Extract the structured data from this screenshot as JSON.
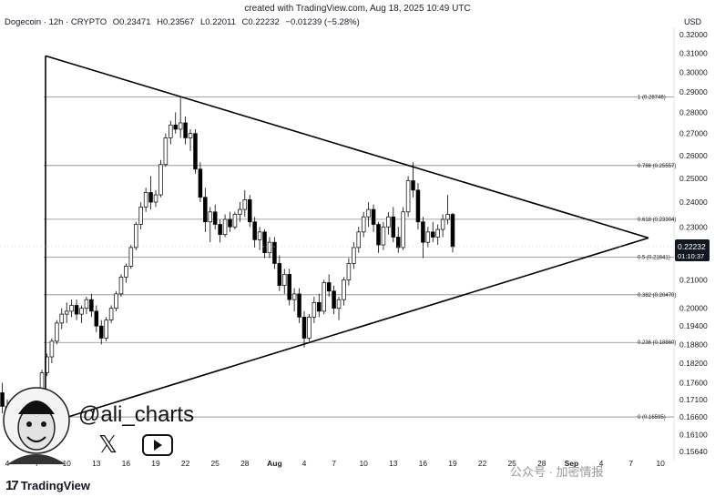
{
  "header": {
    "created_with": "created with TradingView.com, Aug 18, 2025 10:49 UTC",
    "symbol": "Dogecoin · 12h · CRYPTO",
    "open": "O0.23471",
    "high": "H0.23567",
    "low": "L0.22011",
    "close": "C0.22232",
    "change": "−0.01239 (−5.28%)"
  },
  "currency_label": "USD",
  "price_tag": {
    "value": "0.22232",
    "countdown": "01:10:37"
  },
  "branding": {
    "logo_text": "TradingView",
    "handle": "@ali_charts",
    "x_icon": "x-icon",
    "youtube_icon": "youtube-icon"
  },
  "watermark": "公众号 · 加密情报",
  "colors": {
    "up": "#ffffff",
    "down": "#000000",
    "wick": "#000000",
    "fib": "#888888",
    "triangle": "#000000",
    "tag_bg": "#131722"
  },
  "chart_data": {
    "type": "candlestick",
    "scale": "log",
    "y_ticks": [
      "0.32000",
      "0.31000",
      "0.30000",
      "0.29000",
      "0.28000",
      "0.27000",
      "0.26000",
      "0.25000",
      "0.24000",
      "0.23000",
      "0.22000",
      "0.21000",
      "0.20000",
      "0.19400",
      "0.18800",
      "0.18200",
      "0.17600",
      "0.17100",
      "0.16600",
      "0.16100",
      "0.15640"
    ],
    "x_ticks": [
      "4",
      "7",
      "10",
      "13",
      "16",
      "19",
      "22",
      "25",
      "28",
      "Aug",
      "4",
      "7",
      "10",
      "13",
      "16",
      "19",
      "22",
      "25",
      "28",
      "Sep",
      "4",
      "7",
      "10"
    ],
    "fib_levels": [
      {
        "label": "1 (0.28746)",
        "price": 0.28746
      },
      {
        "label": "0.786 (0.25557)",
        "price": 0.25557
      },
      {
        "label": "0.618 (0.23304)",
        "price": 0.23304
      },
      {
        "label": "0.5 (0.21841)",
        "price": 0.21841
      },
      {
        "label": "0.382 (0.20470)",
        "price": 0.2047
      },
      {
        "label": "0.236 (0.18860)",
        "price": 0.1886
      },
      {
        "label": "0 (0.16595)",
        "price": 0.16595
      }
    ],
    "triangle": {
      "upper": [
        {
          "date": "Jul 4",
          "price": 0.3085
        },
        {
          "date": "Sep 2",
          "price": 0.2257
        }
      ],
      "lower": [
        {
          "date": "Jul 4",
          "price": 0.164
        },
        {
          "date": "Sep 2",
          "price": 0.2257
        }
      ]
    },
    "series": [
      {
        "values": [
          [
            0.168,
            0.172,
            0.166,
            0.171
          ],
          [
            0.171,
            0.175,
            0.169,
            0.173
          ],
          [
            0.173,
            0.176,
            0.167,
            0.169
          ],
          [
            0.169,
            0.171,
            0.164,
            0.166
          ],
          [
            0.166,
            0.169,
            0.162,
            0.165
          ],
          [
            0.165,
            0.168,
            0.161,
            0.163
          ],
          [
            0.163,
            0.167,
            0.16,
            0.165
          ],
          [
            0.165,
            0.17,
            0.163,
            0.169
          ],
          [
            0.169,
            0.172,
            0.166,
            0.168
          ],
          [
            0.168,
            0.174,
            0.167,
            0.173
          ],
          [
            0.173,
            0.18,
            0.172,
            0.179
          ],
          [
            0.179,
            0.185,
            0.178,
            0.184
          ],
          [
            0.184,
            0.19,
            0.182,
            0.189
          ],
          [
            0.189,
            0.196,
            0.188,
            0.195
          ],
          [
            0.195,
            0.2,
            0.193,
            0.198
          ],
          [
            0.198,
            0.202,
            0.195,
            0.199
          ],
          [
            0.199,
            0.203,
            0.197,
            0.201
          ],
          [
            0.201,
            0.203,
            0.196,
            0.198
          ],
          [
            0.198,
            0.201,
            0.195,
            0.2
          ],
          [
            0.2,
            0.204,
            0.198,
            0.203
          ],
          [
            0.203,
            0.205,
            0.197,
            0.199
          ],
          [
            0.199,
            0.201,
            0.192,
            0.194
          ],
          [
            0.194,
            0.196,
            0.188,
            0.19
          ],
          [
            0.19,
            0.197,
            0.189,
            0.196
          ],
          [
            0.196,
            0.201,
            0.195,
            0.2
          ],
          [
            0.2,
            0.206,
            0.199,
            0.205
          ],
          [
            0.205,
            0.212,
            0.204,
            0.211
          ],
          [
            0.211,
            0.216,
            0.209,
            0.215
          ],
          [
            0.215,
            0.223,
            0.214,
            0.222
          ],
          [
            0.222,
            0.232,
            0.221,
            0.231
          ],
          [
            0.231,
            0.24,
            0.229,
            0.238
          ],
          [
            0.238,
            0.246,
            0.236,
            0.244
          ],
          [
            0.244,
            0.251,
            0.237,
            0.24
          ],
          [
            0.24,
            0.245,
            0.238,
            0.243
          ],
          [
            0.243,
            0.258,
            0.242,
            0.256
          ],
          [
            0.256,
            0.27,
            0.255,
            0.268
          ],
          [
            0.268,
            0.276,
            0.265,
            0.274
          ],
          [
            0.274,
            0.28,
            0.27,
            0.272
          ],
          [
            0.272,
            0.288,
            0.268,
            0.275
          ],
          [
            0.275,
            0.278,
            0.265,
            0.268
          ],
          [
            0.268,
            0.272,
            0.262,
            0.27
          ],
          [
            0.27,
            0.272,
            0.252,
            0.254
          ],
          [
            0.254,
            0.257,
            0.24,
            0.242
          ],
          [
            0.242,
            0.246,
            0.228,
            0.232
          ],
          [
            0.232,
            0.238,
            0.224,
            0.236
          ],
          [
            0.236,
            0.239,
            0.229,
            0.231
          ],
          [
            0.231,
            0.233,
            0.224,
            0.227
          ],
          [
            0.227,
            0.235,
            0.226,
            0.233
          ],
          [
            0.233,
            0.236,
            0.228,
            0.23
          ],
          [
            0.23,
            0.236,
            0.229,
            0.235
          ],
          [
            0.235,
            0.24,
            0.232,
            0.237
          ],
          [
            0.237,
            0.245,
            0.234,
            0.241
          ],
          [
            0.241,
            0.243,
            0.23,
            0.232
          ],
          [
            0.232,
            0.234,
            0.222,
            0.225
          ],
          [
            0.225,
            0.23,
            0.221,
            0.228
          ],
          [
            0.228,
            0.229,
            0.218,
            0.22
          ],
          [
            0.22,
            0.226,
            0.218,
            0.224
          ],
          [
            0.224,
            0.226,
            0.214,
            0.216
          ],
          [
            0.216,
            0.219,
            0.206,
            0.208
          ],
          [
            0.208,
            0.214,
            0.205,
            0.212
          ],
          [
            0.212,
            0.214,
            0.201,
            0.203
          ],
          [
            0.203,
            0.207,
            0.199,
            0.205
          ],
          [
            0.205,
            0.207,
            0.195,
            0.197
          ],
          [
            0.197,
            0.199,
            0.187,
            0.19
          ],
          [
            0.19,
            0.198,
            0.189,
            0.197
          ],
          [
            0.197,
            0.204,
            0.195,
            0.202
          ],
          [
            0.202,
            0.205,
            0.197,
            0.199
          ],
          [
            0.199,
            0.21,
            0.198,
            0.209
          ],
          [
            0.209,
            0.212,
            0.204,
            0.206
          ],
          [
            0.206,
            0.208,
            0.198,
            0.2
          ],
          [
            0.2,
            0.204,
            0.196,
            0.203
          ],
          [
            0.203,
            0.211,
            0.201,
            0.21
          ],
          [
            0.21,
            0.218,
            0.208,
            0.216
          ],
          [
            0.216,
            0.224,
            0.214,
            0.222
          ],
          [
            0.222,
            0.23,
            0.22,
            0.228
          ],
          [
            0.228,
            0.236,
            0.226,
            0.234
          ],
          [
            0.234,
            0.24,
            0.23,
            0.237
          ],
          [
            0.237,
            0.239,
            0.228,
            0.231
          ],
          [
            0.231,
            0.232,
            0.22,
            0.223
          ],
          [
            0.223,
            0.232,
            0.221,
            0.23
          ],
          [
            0.23,
            0.236,
            0.227,
            0.234
          ],
          [
            0.234,
            0.238,
            0.224,
            0.226
          ],
          [
            0.226,
            0.23,
            0.22,
            0.222
          ],
          [
            0.222,
            0.238,
            0.221,
            0.236
          ],
          [
            0.236,
            0.251,
            0.234,
            0.249
          ],
          [
            0.249,
            0.257,
            0.242,
            0.245
          ],
          [
            0.245,
            0.248,
            0.229,
            0.232
          ],
          [
            0.232,
            0.234,
            0.218,
            0.224
          ],
          [
            0.224,
            0.23,
            0.222,
            0.228
          ],
          [
            0.228,
            0.232,
            0.224,
            0.226
          ],
          [
            0.226,
            0.231,
            0.223,
            0.229
          ],
          [
            0.229,
            0.235,
            0.226,
            0.233
          ],
          [
            0.233,
            0.243,
            0.231,
            0.235
          ],
          [
            0.235,
            0.23567,
            0.22011,
            0.22232
          ]
        ]
      }
    ]
  }
}
